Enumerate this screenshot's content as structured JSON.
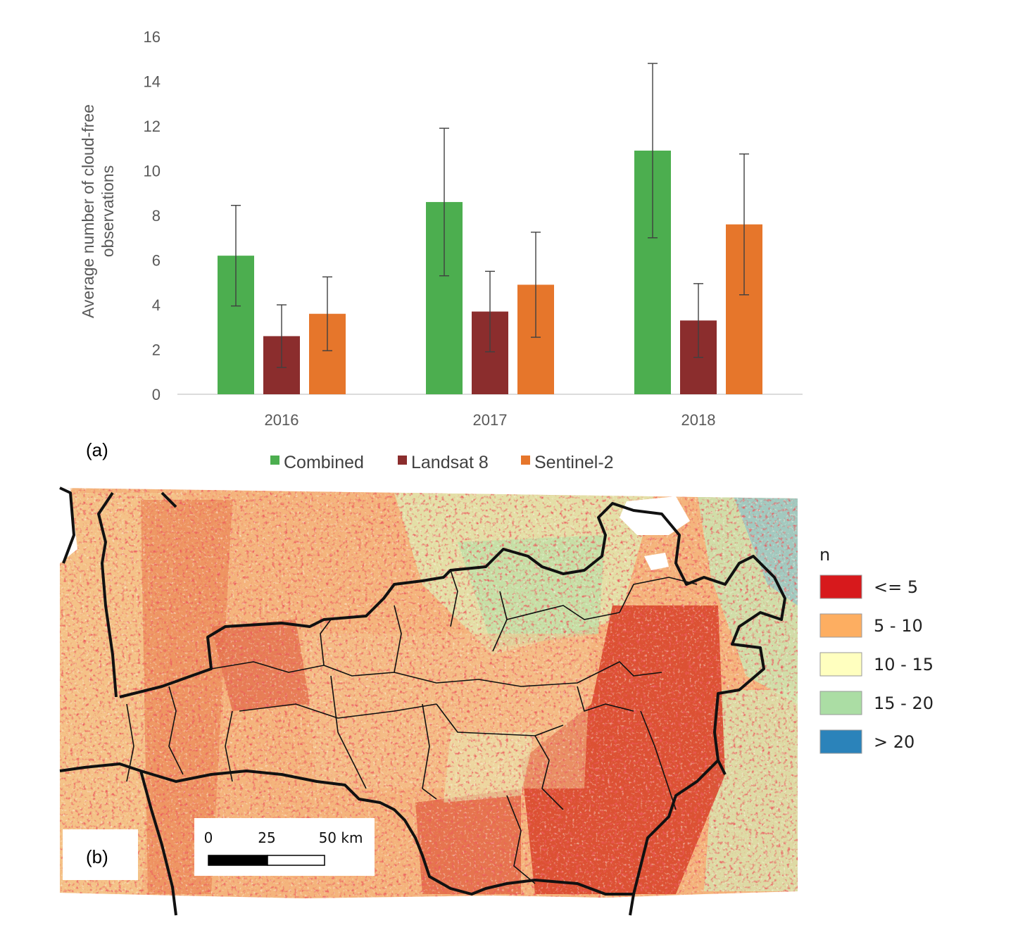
{
  "chart_data": [
    {
      "panel": "(a)",
      "type": "bar",
      "categories": [
        "2016",
        "2017",
        "2018"
      ],
      "series": [
        {
          "name": "Combined",
          "color": "#4cae4f",
          "values": [
            6.2,
            8.6,
            10.9
          ],
          "error": [
            2.25,
            3.3,
            3.9
          ]
        },
        {
          "name": "Landsat 8",
          "color": "#8b2d2d",
          "values": [
            2.6,
            3.7,
            3.3
          ],
          "error": [
            1.4,
            1.8,
            1.65
          ]
        },
        {
          "name": "Sentinel-2",
          "color": "#e6762b",
          "values": [
            3.6,
            4.9,
            7.6
          ],
          "error": [
            1.65,
            2.35,
            3.15
          ]
        }
      ],
      "ylabel": "Average number of cloud-free observations",
      "ylim": [
        0,
        16
      ],
      "yticks": [
        "0",
        "2",
        "4",
        "6",
        "8",
        "10",
        "12",
        "14",
        "16"
      ],
      "legend_position": "bottom",
      "grid": false
    },
    {
      "panel": "(b)",
      "type": "heatmap",
      "legend_title": "n",
      "legend": [
        {
          "label": "<= 5",
          "color": "#d7191c"
        },
        {
          "label": "5 - 10",
          "color": "#fdae61"
        },
        {
          "label": "10 - 15",
          "color": "#ffffbf"
        },
        {
          "label": "15 - 20",
          "color": "#abdda4"
        },
        {
          "label": "> 20",
          "color": "#2b83ba"
        }
      ],
      "scale_bar": {
        "labels": [
          "0",
          "25",
          "50 km"
        ]
      }
    }
  ]
}
